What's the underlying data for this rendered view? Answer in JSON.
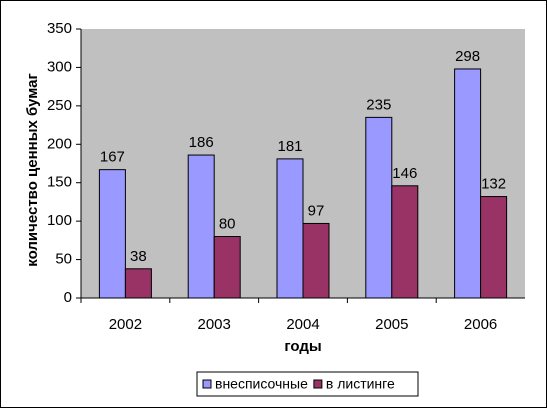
{
  "chart_data": {
    "type": "bar",
    "categories": [
      "2002",
      "2003",
      "2004",
      "2005",
      "2006"
    ],
    "series": [
      {
        "name": "внесписочные",
        "color": "#9999ff",
        "values": [
          167,
          186,
          181,
          235,
          298
        ]
      },
      {
        "name": "в листинге",
        "color": "#993366",
        "values": [
          38,
          80,
          97,
          146,
          132
        ]
      }
    ],
    "ylim": [
      0,
      350
    ],
    "yticks": [
      0,
      50,
      100,
      150,
      200,
      250,
      300,
      350
    ],
    "x_label": "годы",
    "y_label": "количество ценных бумаг",
    "plot_background": "#c0c0c0",
    "legend": "bottom"
  }
}
